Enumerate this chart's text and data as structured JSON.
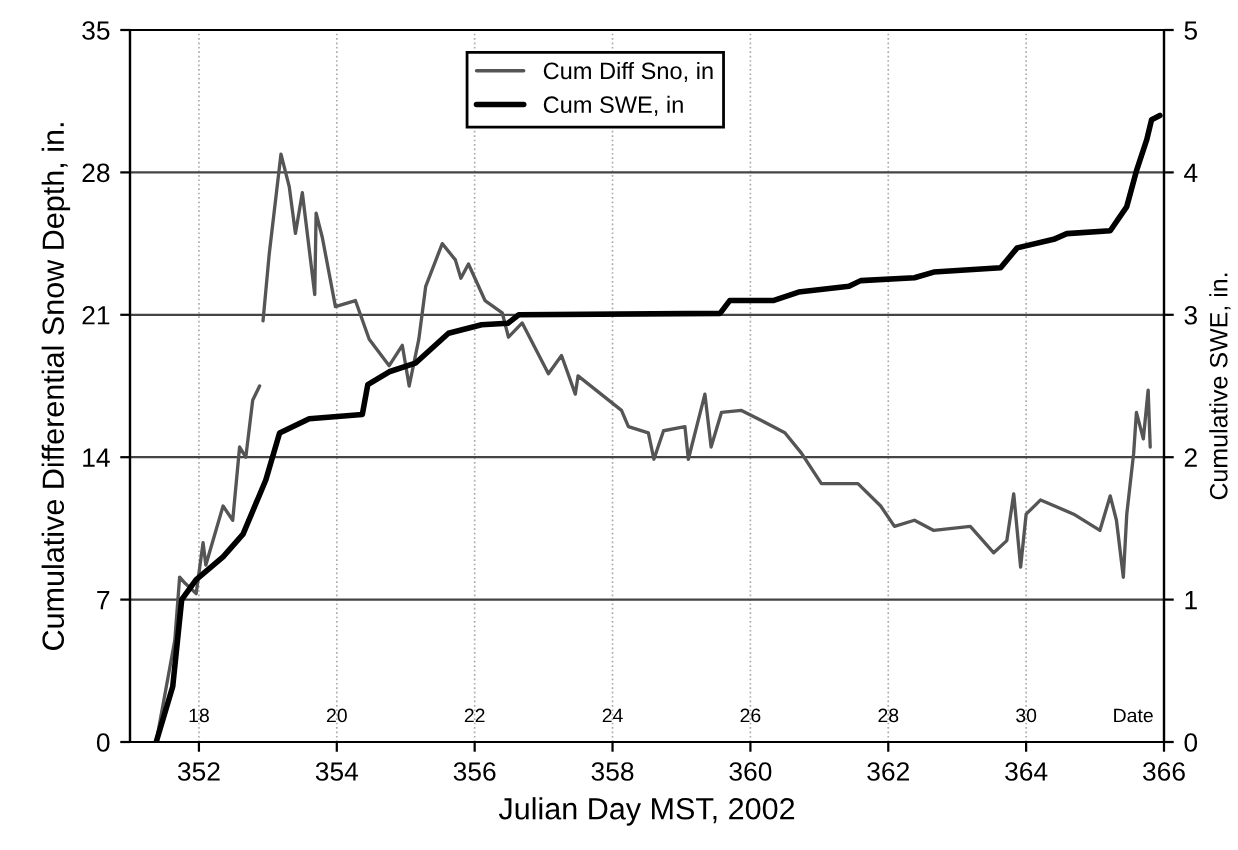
{
  "chart_data": {
    "type": "line",
    "xlabel": "Julian Day MST, 2002",
    "ylabel": "Cumulative Differential Snow Depth, in.",
    "y2label": "Cumulative SWE, in.",
    "xlim": [
      351,
      366
    ],
    "xticks": [
      352,
      354,
      356,
      358,
      360,
      362,
      364,
      366
    ],
    "ylim": [
      0,
      35
    ],
    "yticks": [
      0,
      7,
      14,
      21,
      28,
      35
    ],
    "y2lim": [
      0,
      5
    ],
    "y2ticks": [
      0,
      1,
      2,
      3,
      4,
      5
    ],
    "grid": true,
    "legend": "top",
    "line_style": "solid",
    "marker": "none",
    "annotations": [
      "18",
      "20",
      "22",
      "24",
      "26",
      "28",
      "30",
      "Date"
    ],
    "series": [
      {
        "name": "Cum Diff Sno, in",
        "color": "#555555",
        "axis": "y",
        "x": [
          351.38,
          351.65,
          351.72,
          351.8,
          351.96,
          352.06,
          352.1,
          352.35,
          352.49,
          352.59,
          352.68,
          352.78,
          352.88,
          352.9,
          352.93,
          353.02,
          353.19,
          353.31,
          353.4,
          353.5,
          353.68,
          353.7,
          353.79,
          353.98,
          354.27,
          354.47,
          354.76,
          354.95,
          355.05,
          355.19,
          355.29,
          355.53,
          355.72,
          355.8,
          355.91,
          356.15,
          356.4,
          356.49,
          356.69,
          357.07,
          357.26,
          357.46,
          357.5,
          358.13,
          358.23,
          358.52,
          358.6,
          358.74,
          359.05,
          359.1,
          359.34,
          359.43,
          359.58,
          359.87,
          360.16,
          360.5,
          360.74,
          361.03,
          361.56,
          361.89,
          362.09,
          362.38,
          362.66,
          363.19,
          363.53,
          363.72,
          363.82,
          363.92,
          364.0,
          364.21,
          364.69,
          365.07,
          365.22,
          365.31,
          365.41,
          365.46,
          365.56,
          365.6,
          365.7,
          365.77,
          365.8
        ],
        "values": [
          0,
          5.0,
          8.1,
          7.8,
          7.3,
          9.8,
          8.7,
          11.6,
          10.9,
          14.5,
          14.0,
          16.8,
          17.5,
          null,
          20.7,
          24.0,
          28.9,
          27.3,
          25.0,
          27.0,
          22.0,
          26.0,
          24.8,
          21.4,
          21.7,
          19.8,
          18.5,
          19.5,
          17.5,
          19.8,
          22.4,
          24.5,
          23.7,
          22.8,
          23.5,
          21.7,
          21.1,
          19.9,
          20.6,
          18.1,
          19.0,
          17.1,
          18.0,
          16.3,
          15.5,
          15.2,
          13.9,
          15.3,
          15.5,
          13.9,
          17.1,
          14.5,
          16.2,
          16.3,
          15.8,
          15.2,
          14.2,
          12.7,
          12.7,
          11.6,
          10.6,
          10.9,
          10.4,
          10.6,
          9.3,
          9.9,
          12.2,
          8.6,
          11.2,
          11.9,
          11.2,
          10.4,
          12.1,
          10.9,
          8.1,
          11.2,
          14.2,
          16.2,
          14.9,
          17.3,
          14.5
        ]
      },
      {
        "name": "Cum SWE, in",
        "color": "#000000",
        "axis": "y2",
        "x": [
          351.38,
          351.62,
          351.75,
          351.96,
          352.35,
          352.64,
          352.97,
          353.17,
          353.6,
          354.37,
          354.45,
          354.76,
          355.14,
          355.62,
          356.1,
          356.48,
          356.64,
          359.56,
          359.7,
          360.33,
          360.7,
          361.43,
          361.6,
          362.38,
          362.66,
          363.63,
          363.87,
          364.4,
          364.59,
          365.22,
          365.46,
          365.6,
          365.75,
          365.82,
          365.94
        ],
        "values": [
          0,
          0.39,
          1.0,
          1.14,
          1.3,
          1.46,
          1.84,
          2.17,
          2.27,
          2.3,
          2.51,
          2.6,
          2.66,
          2.87,
          2.93,
          2.94,
          3.0,
          3.01,
          3.1,
          3.1,
          3.16,
          3.2,
          3.24,
          3.26,
          3.3,
          3.33,
          3.47,
          3.53,
          3.57,
          3.59,
          3.76,
          4.01,
          4.23,
          4.37,
          4.4
        ]
      }
    ]
  }
}
